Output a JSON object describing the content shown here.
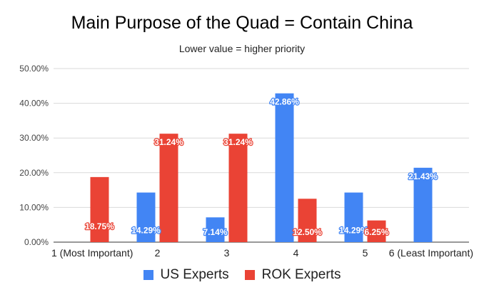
{
  "chart_data": {
    "type": "bar",
    "title": "Main Purpose of the Quad = Contain China",
    "subtitle": "Lower value = higher priority",
    "categories": [
      "1 (Most Important)",
      "2",
      "3",
      "4",
      "5",
      "6 (Least Important)"
    ],
    "series": [
      {
        "name": "US Experts",
        "color": "#4285F4",
        "values": [
          null,
          14.29,
          7.14,
          42.86,
          14.29,
          21.43
        ],
        "labels": [
          null,
          "14.29%",
          "7.14%",
          "42.86%",
          "14.29%",
          "21.43%"
        ]
      },
      {
        "name": "ROK Experts",
        "color": "#EA4335",
        "values": [
          18.75,
          31.24,
          31.24,
          12.5,
          6.25,
          null
        ],
        "labels": [
          "18.75%",
          "31.24%",
          "31.24%",
          "12.50%",
          "6.25%",
          null
        ]
      }
    ],
    "ylim": [
      0,
      50
    ],
    "yticks": [
      "0.00%",
      "10.00%",
      "20.00%",
      "30.00%",
      "40.00%",
      "50.00%"
    ],
    "ytick_values": [
      0,
      10,
      20,
      30,
      40,
      50
    ],
    "grid": true,
    "legend_position": "bottom"
  }
}
